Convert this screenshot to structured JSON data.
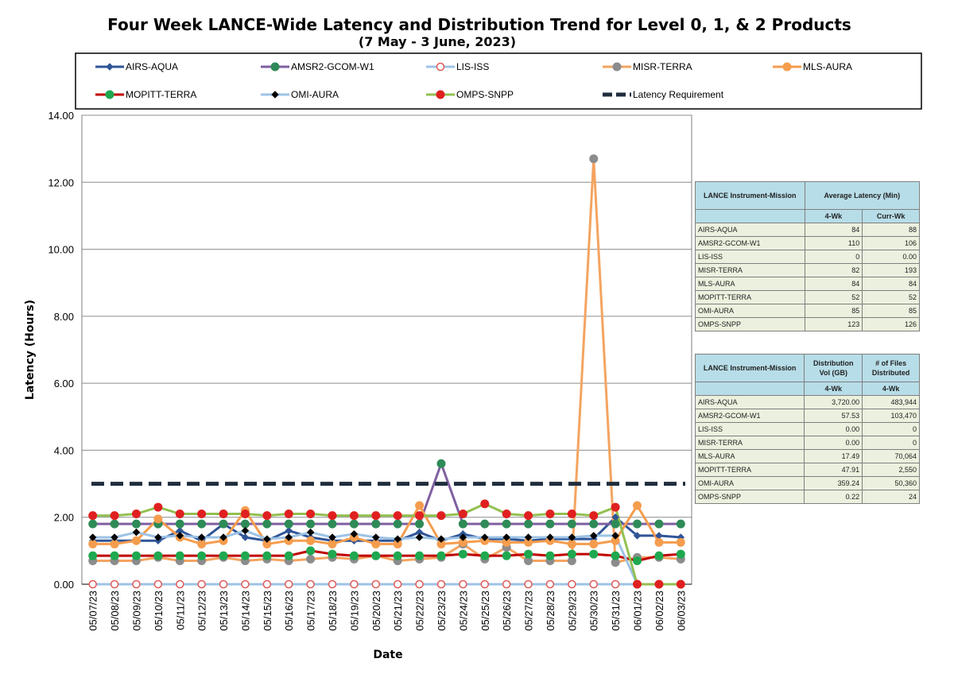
{
  "chart_data": {
    "type": "line",
    "title": "Four Week LANCE-Wide Latency and Distribution Trend for Level 0, 1, & 2 Products",
    "subtitle": "(7 May    - 3 June, 2023)",
    "xlabel": "Date",
    "ylabel": "Latency (Hours)",
    "ylim": [
      0,
      14
    ],
    "yticks": [
      "0.00",
      "2.00",
      "4.00",
      "6.00",
      "8.00",
      "10.00",
      "12.00",
      "14.00"
    ],
    "grid": "horizontal",
    "legend_position": "top",
    "categories": [
      "05/07/23",
      "05/08/23",
      "05/09/23",
      "05/10/23",
      "05/11/23",
      "05/12/23",
      "05/13/23",
      "05/14/23",
      "05/15/23",
      "05/16/23",
      "05/17/23",
      "05/18/23",
      "05/19/23",
      "05/20/23",
      "05/21/23",
      "05/22/23",
      "05/23/23",
      "05/24/23",
      "05/25/23",
      "05/26/23",
      "05/27/23",
      "05/28/23",
      "05/29/23",
      "05/30/23",
      "05/31/23",
      "06/01/23",
      "06/02/23",
      "06/03/23"
    ],
    "series": [
      {
        "name": "AIRS-AQUA",
        "color": "#2f5597",
        "marker": "diamond",
        "marker_color": "#2f5597",
        "values": [
          1.3,
          1.3,
          1.3,
          1.3,
          1.6,
          1.3,
          1.8,
          1.4,
          1.3,
          1.6,
          1.4,
          1.3,
          1.3,
          1.3,
          1.3,
          1.55,
          1.3,
          1.5,
          1.35,
          1.35,
          1.3,
          1.35,
          1.35,
          1.35,
          2.0,
          1.45,
          1.45,
          1.4
        ]
      },
      {
        "name": "AMSR2-GCOM-W1",
        "color": "#7f5fa0",
        "marker": "circle",
        "marker_color": "#2e8b57",
        "values": [
          1.8,
          1.8,
          1.8,
          1.8,
          1.8,
          1.8,
          1.8,
          1.8,
          1.8,
          1.8,
          1.8,
          1.8,
          1.8,
          1.8,
          1.8,
          1.8,
          3.6,
          1.8,
          1.8,
          1.8,
          1.8,
          1.8,
          1.8,
          1.8,
          1.8,
          1.8,
          1.8,
          1.8
        ]
      },
      {
        "name": "LIS-ISS",
        "color": "#9dc3e6",
        "marker": "ring",
        "marker_color": "#e05a5a",
        "values": [
          0,
          0,
          0,
          0,
          0,
          0,
          0,
          0,
          0,
          0,
          0,
          0,
          0,
          0,
          0,
          0,
          0,
          0,
          0,
          0,
          0,
          0,
          0,
          0,
          0,
          0,
          0,
          0
        ]
      },
      {
        "name": "MISR-TERRA",
        "color": "#f4a460",
        "marker": "circle",
        "marker_color": "#8c8c8c",
        "values": [
          0.7,
          0.7,
          0.7,
          0.8,
          0.7,
          0.7,
          0.8,
          0.7,
          0.75,
          0.7,
          0.75,
          0.8,
          0.75,
          0.85,
          0.7,
          0.75,
          0.8,
          1.2,
          0.75,
          1.1,
          0.7,
          0.7,
          0.7,
          12.7,
          0.65,
          0.8,
          0.8,
          0.75
        ]
      },
      {
        "name": "MLS-AURA",
        "color": "#f59d4e",
        "marker": "circle",
        "marker_color": "#f59d4e",
        "values": [
          1.2,
          1.2,
          1.3,
          1.95,
          1.4,
          1.2,
          1.3,
          2.2,
          1.2,
          1.3,
          1.3,
          1.2,
          1.4,
          1.2,
          1.2,
          2.35,
          1.2,
          1.25,
          1.3,
          1.25,
          1.25,
          1.3,
          1.2,
          1.2,
          1.3,
          2.35,
          1.25,
          1.25
        ]
      },
      {
        "name": "MOPITT-TERRA",
        "color": "#c00000",
        "marker": "circle",
        "marker_color": "#1fa84f",
        "values": [
          0.85,
          0.85,
          0.85,
          0.85,
          0.85,
          0.85,
          0.85,
          0.85,
          0.85,
          0.85,
          1.0,
          0.9,
          0.85,
          0.85,
          0.85,
          0.85,
          0.85,
          0.9,
          0.85,
          0.85,
          0.9,
          0.85,
          0.9,
          0.9,
          0.85,
          0.7,
          0.85,
          0.9
        ]
      },
      {
        "name": "OMI-AURA",
        "color": "#9dc3e6",
        "marker": "diamond",
        "marker_color": "#000000",
        "values": [
          1.4,
          1.4,
          1.55,
          1.4,
          1.45,
          1.4,
          1.4,
          1.6,
          1.35,
          1.4,
          1.55,
          1.4,
          1.5,
          1.4,
          1.35,
          1.4,
          1.35,
          1.4,
          1.4,
          1.4,
          1.4,
          1.4,
          1.4,
          1.45,
          1.45,
          0.0,
          0.0,
          0.0
        ]
      },
      {
        "name": "OMPS-SNPP",
        "color": "#92c050",
        "marker": "circle",
        "marker_color": "#e02020",
        "values": [
          2.05,
          2.05,
          2.1,
          2.3,
          2.1,
          2.1,
          2.1,
          2.1,
          2.05,
          2.1,
          2.1,
          2.05,
          2.05,
          2.05,
          2.05,
          2.05,
          2.05,
          2.1,
          2.4,
          2.1,
          2.05,
          2.1,
          2.1,
          2.05,
          2.3,
          0.0,
          0.0,
          0.0
        ]
      },
      {
        "name": "Latency Requirement",
        "color": "#1f2d3d",
        "marker": "none",
        "dashed": true,
        "values": [
          3,
          3,
          3,
          3,
          3,
          3,
          3,
          3,
          3,
          3,
          3,
          3,
          3,
          3,
          3,
          3,
          3,
          3,
          3,
          3,
          3,
          3,
          3,
          3,
          3,
          3,
          3,
          3
        ]
      }
    ]
  },
  "latency_table": {
    "header1": "LANCE Instrument-Mission",
    "header2": "Average Latency (Min)",
    "sub1": "4-Wk",
    "sub2": "Curr-Wk",
    "rows": [
      {
        "name": "AIRS-AQUA",
        "a": "84",
        "b": "88"
      },
      {
        "name": "AMSR2-GCOM-W1",
        "a": "110",
        "b": "106"
      },
      {
        "name": "LIS-ISS",
        "a": "0",
        "b": "0.00"
      },
      {
        "name": "MISR-TERRA",
        "a": "82",
        "b": "193"
      },
      {
        "name": "MLS-AURA",
        "a": "84",
        "b": "84"
      },
      {
        "name": "MOPITT-TERRA",
        "a": "52",
        "b": "52"
      },
      {
        "name": "OMI-AURA",
        "a": "85",
        "b": "85"
      },
      {
        "name": "OMPS-SNPP",
        "a": "123",
        "b": "126"
      }
    ]
  },
  "distribution_table": {
    "header1": "LANCE Instrument-Mission",
    "header2": "Distribution Vol (GB)",
    "header3": "# of Files Distributed",
    "sub1": "4-Wk",
    "sub2": "4-Wk",
    "rows": [
      {
        "name": "AIRS-AQUA",
        "a": "3,720.00",
        "b": "483,944"
      },
      {
        "name": "AMSR2-GCOM-W1",
        "a": "57.53",
        "b": "103,470"
      },
      {
        "name": "LIS-ISS",
        "a": "0.00",
        "b": "0"
      },
      {
        "name": "MISR-TERRA",
        "a": "0.00",
        "b": "0"
      },
      {
        "name": "MLS-AURA",
        "a": "17.49",
        "b": "70,064"
      },
      {
        "name": "MOPITT-TERRA",
        "a": "47.91",
        "b": "2,550"
      },
      {
        "name": "OMI-AURA",
        "a": "359.24",
        "b": "50,360"
      },
      {
        "name": "OMPS-SNPP",
        "a": "0.22",
        "b": "24"
      }
    ]
  }
}
